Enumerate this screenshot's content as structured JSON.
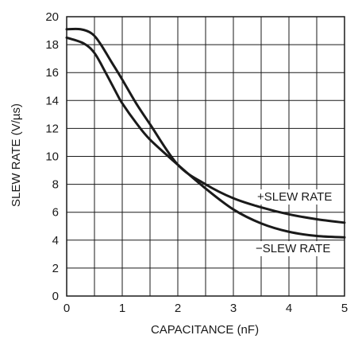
{
  "chart_data": {
    "type": "line",
    "xlabel": "CAPACITANCE (nF)",
    "ylabel": "SLEW RATE (V/µs)",
    "xlim": [
      0,
      5
    ],
    "ylim": [
      0,
      20
    ],
    "x_ticks": [
      "0",
      "1",
      "2",
      "3",
      "4",
      "5"
    ],
    "y_ticks": [
      "0",
      "2",
      "4",
      "6",
      "8",
      "10",
      "12",
      "14",
      "16",
      "18",
      "20"
    ],
    "grid": true,
    "series": [
      {
        "name": "+SLEW RATE",
        "x": [
          0,
          0.25,
          0.45,
          0.6,
          0.8,
          1.0,
          1.25,
          1.5,
          2.0,
          2.5,
          3.0,
          3.5,
          4.0,
          4.5,
          5.0
        ],
        "y": [
          19.1,
          19.1,
          18.8,
          18.1,
          16.8,
          15.5,
          13.8,
          12.3,
          9.4,
          8.0,
          7.0,
          6.35,
          5.85,
          5.5,
          5.25
        ]
      },
      {
        "name": "−SLEW RATE",
        "x": [
          0,
          0.3,
          0.5,
          0.7,
          0.9,
          1.0,
          1.25,
          1.5,
          2.0,
          2.5,
          3.0,
          3.5,
          4.0,
          4.5,
          5.0
        ],
        "y": [
          18.5,
          18.1,
          17.4,
          16.0,
          14.5,
          13.8,
          12.4,
          11.2,
          9.4,
          7.7,
          6.2,
          5.2,
          4.6,
          4.3,
          4.2
        ]
      }
    ]
  },
  "colors": {
    "curve": "#1a1a1a",
    "grid": "#1a1a1a",
    "background": "#ffffff"
  }
}
